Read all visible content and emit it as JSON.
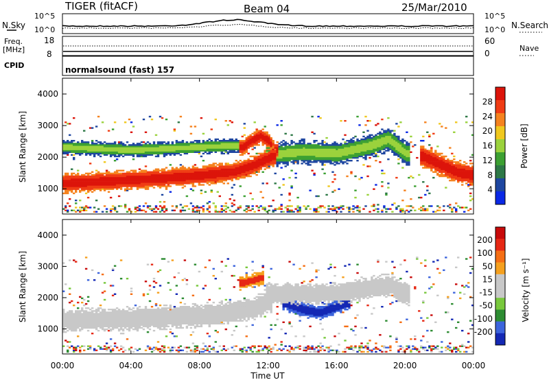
{
  "header": {
    "radar": "TIGER (fitACF)",
    "beam": "Beam 04",
    "date": "25/Mar/2010"
  },
  "top_panels": {
    "nsky_label": "N.Sky",
    "nsky_ticks": [
      "10^5",
      "10^0"
    ],
    "nsearch_label": "N.Search",
    "nsearch_ticks": [
      "10^5",
      "10^0"
    ],
    "freq_label": "Freq.",
    "freq_unit": "[MHz]",
    "freq_ticks": [
      "18",
      "8"
    ],
    "nave_label": "Nave",
    "nave_ticks": [
      "60",
      "0"
    ],
    "cpid_label": "CPID",
    "cpid_value": "normalsound (fast) 157"
  },
  "x_axis": {
    "label": "Time UT",
    "ticks": [
      "00:00",
      "04:00",
      "08:00",
      "12:00",
      "16:00",
      "20:00",
      "00:00"
    ]
  },
  "colors": {
    "power": [
      "#0a28e6",
      "#1e46a0",
      "#2d7846",
      "#3ca032",
      "#9bd23c",
      "#f0c81e",
      "#f5821e",
      "#f03c14",
      "#dc140a"
    ],
    "velocity": [
      "#1428b4",
      "#3c64dc",
      "#2d8c32",
      "#78c83c",
      "#c8c8c8",
      "#c8c8c8",
      "#f5a01e",
      "#f56e14",
      "#e62814",
      "#c80a0a"
    ]
  },
  "chart_data": [
    {
      "type": "heatmap",
      "panel": "power",
      "xlabel": "Time UT",
      "ylabel": "Slant Range [km]",
      "yticks": [
        "1000",
        "2000",
        "3000",
        "4000"
      ],
      "ylim": [
        200,
        4500
      ],
      "xlim": [
        0,
        24
      ],
      "colorbar_label": "Power [dB]",
      "colorbar_ticks": [
        "28",
        "24",
        "20",
        "16",
        "12",
        "8",
        "4"
      ],
      "features": [
        {
          "t": [
            0,
            2,
            4,
            6,
            8,
            10,
            11,
            12.2
          ],
          "range": [
            1150,
            1200,
            1260,
            1320,
            1400,
            1520,
            1700,
            2000
          ],
          "band": 280,
          "level": "strong"
        },
        {
          "t": [
            10.5,
            11,
            11.5,
            12,
            12.3
          ],
          "range": [
            2300,
            2500,
            2650,
            2500,
            2200
          ],
          "band": 220,
          "level": "strong"
        },
        {
          "t": [
            12,
            14,
            16,
            18,
            19,
            20
          ],
          "range": [
            2050,
            2150,
            2100,
            2350,
            2550,
            2100
          ],
          "band": 320,
          "level": "medium"
        },
        {
          "t": [
            0,
            2,
            4,
            6,
            8,
            10
          ],
          "range": [
            2300,
            2250,
            2200,
            2250,
            2300,
            2350
          ],
          "band": 200,
          "level": "medium"
        },
        {
          "t": [
            21,
            22,
            23,
            24
          ],
          "range": [
            2000,
            1750,
            1500,
            1400
          ],
          "band": 320,
          "level": "strong"
        }
      ]
    },
    {
      "type": "heatmap",
      "panel": "velocity",
      "xlabel": "Time UT",
      "ylabel": "Slant Range [km]",
      "yticks": [
        "1000",
        "2000",
        "3000",
        "4000"
      ],
      "ylim": [
        200,
        4500
      ],
      "xlim": [
        0,
        24
      ],
      "colorbar_label": "Velocity [m s⁻¹]",
      "colorbar_ticks": [
        "200",
        "100",
        "50",
        "15",
        "-15",
        "-50",
        "-100",
        "-200"
      ],
      "features": [
        {
          "t": [
            0,
            4,
            8,
            11,
            12
          ],
          "range": [
            1250,
            1300,
            1400,
            1600,
            1900
          ],
          "band": 320,
          "level": "ground"
        },
        {
          "t": [
            12,
            16,
            19,
            20
          ],
          "range": [
            2100,
            2100,
            2400,
            2100
          ],
          "band": 300,
          "level": "ground"
        },
        {
          "t": [
            13,
            14,
            15,
            16.5
          ],
          "range": [
            1800,
            1600,
            1500,
            1800
          ],
          "band": 200,
          "level": "toward"
        },
        {
          "t": [
            10.5,
            11.5
          ],
          "range": [
            2450,
            2600
          ],
          "band": 200,
          "level": "mixed"
        }
      ]
    }
  ]
}
